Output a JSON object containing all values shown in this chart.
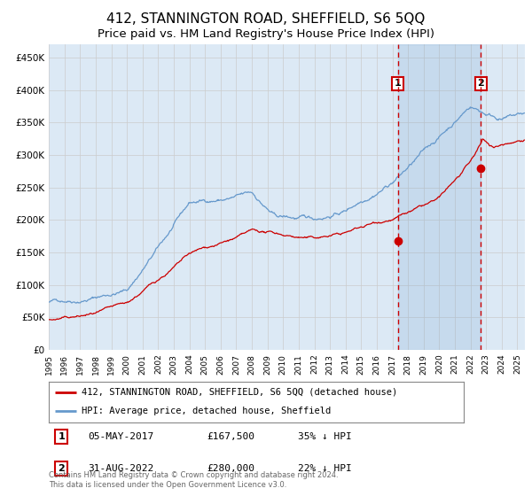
{
  "title": "412, STANNINGTON ROAD, SHEFFIELD, S6 5QQ",
  "subtitle": "Price paid vs. HM Land Registry's House Price Index (HPI)",
  "title_fontsize": 11,
  "subtitle_fontsize": 9.5,
  "ylim": [
    0,
    470000
  ],
  "yticks": [
    0,
    50000,
    100000,
    150000,
    200000,
    250000,
    300000,
    350000,
    400000,
    450000
  ],
  "ytick_labels": [
    "£0",
    "£50K",
    "£100K",
    "£150K",
    "£200K",
    "£250K",
    "£300K",
    "£350K",
    "£400K",
    "£450K"
  ],
  "hpi_color": "#6699cc",
  "price_color": "#cc0000",
  "background_color": "#dce9f5",
  "plot_bg_color": "#ffffff",
  "grid_color": "#cccccc",
  "sale1_date": 2017.35,
  "sale1_price": 167500,
  "sale2_date": 2022.67,
  "sale2_price": 280000,
  "legend_label_price": "412, STANNINGTON ROAD, SHEFFIELD, S6 5QQ (detached house)",
  "legend_label_hpi": "HPI: Average price, detached house, Sheffield",
  "footer": "Contains HM Land Registry data © Crown copyright and database right 2024.\nThis data is licensed under the Open Government Licence v3.0."
}
